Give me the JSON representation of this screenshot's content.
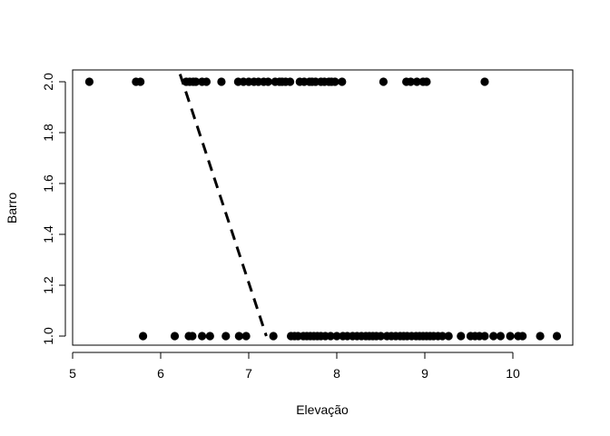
{
  "chart_data": {
    "type": "scatter",
    "title": "",
    "xlabel": "Elevação",
    "ylabel": "Barro",
    "xlim": [
      5.0,
      10.6
    ],
    "ylim": [
      0.98,
      2.03
    ],
    "x_ticks": [
      5,
      6,
      7,
      8,
      9,
      10
    ],
    "x_tick_labels": [
      "5",
      "6",
      "7",
      "8",
      "9",
      "10"
    ],
    "y_ticks": [
      1.0,
      1.2,
      1.4,
      1.6,
      1.8,
      2.0
    ],
    "y_tick_labels": [
      "1.0",
      "1.2",
      "1.4",
      "1.6",
      "1.8",
      "2.0"
    ],
    "grid": false,
    "point_color": "#000000",
    "line_color": "#000000",
    "series": [
      {
        "values_y": 2.0,
        "x": [
          5.19,
          5.72,
          5.77,
          6.29,
          6.33,
          6.37,
          6.4,
          6.47,
          6.52,
          6.69,
          6.88,
          6.94,
          7.0,
          7.06,
          7.11,
          7.17,
          7.22,
          7.3,
          7.35,
          7.38,
          7.42,
          7.47,
          7.58,
          7.63,
          7.69,
          7.72,
          7.76,
          7.82,
          7.86,
          7.91,
          7.94,
          7.98,
          8.06,
          8.53,
          8.79,
          8.84,
          8.91,
          8.98,
          9.02,
          9.68
        ]
      },
      {
        "values_y": 1.0,
        "x": [
          5.8,
          6.16,
          6.32,
          6.36,
          6.47,
          6.56,
          6.74,
          6.89,
          6.97,
          7.28,
          7.48,
          7.52,
          7.56,
          7.62,
          7.66,
          7.7,
          7.74,
          7.78,
          7.82,
          7.87,
          7.93,
          8.0,
          8.07,
          8.12,
          8.18,
          8.23,
          8.28,
          8.33,
          8.37,
          8.41,
          8.45,
          8.5,
          8.57,
          8.62,
          8.67,
          8.72,
          8.76,
          8.8,
          8.85,
          8.9,
          8.94,
          8.98,
          9.02,
          9.06,
          9.1,
          9.15,
          9.2,
          9.27,
          9.41,
          9.52,
          9.57,
          9.62,
          9.68,
          9.78,
          9.86,
          9.97,
          10.06,
          10.11,
          10.31,
          10.5
        ]
      }
    ],
    "fitted_line": {
      "style": "dashed",
      "points": [
        [
          6.22,
          2.03
        ],
        [
          7.2,
          1.0
        ]
      ]
    }
  }
}
